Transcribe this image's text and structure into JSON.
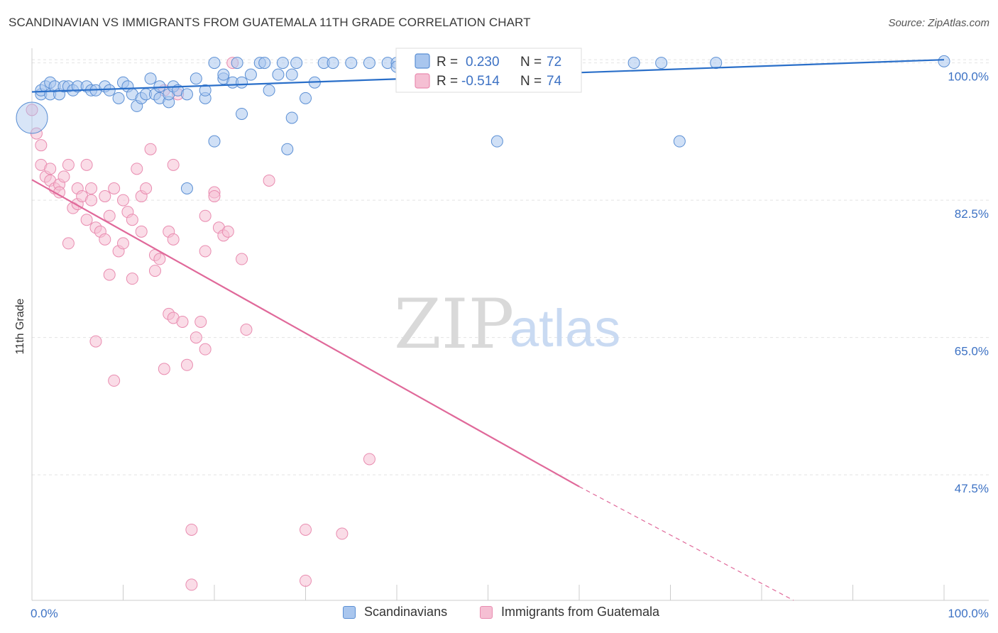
{
  "header": {
    "title": "SCANDINAVIAN VS IMMIGRANTS FROM GUATEMALA 11TH GRADE CORRELATION CHART",
    "source": "Source: ZipAtlas.com"
  },
  "watermark": {
    "zip": "ZIP",
    "atlas": "atlas"
  },
  "colors": {
    "blue": "#5b8fd4",
    "blue_fill": "#a9c6ee",
    "blue_line": "#2a6fc9",
    "pink": "#e98cb0",
    "pink_fill": "#f5bfd3",
    "pink_line": "#e0699a",
    "tick_text": "#3d72c4",
    "grid": "#e3e3e3"
  },
  "legend": {
    "rows": [
      {
        "r_label": "R =",
        "r_value": "0.230",
        "n_label": "N =",
        "n_value": "72"
      },
      {
        "r_label": "R =",
        "r_value": "-0.514",
        "n_label": "N =",
        "n_value": "74"
      }
    ]
  },
  "bottom_legend": [
    "Scandinavians",
    "Immigrants from Guatemala"
  ],
  "chart_data": {
    "type": "scatter",
    "title": "SCANDINAVIAN VS IMMIGRANTS FROM GUATEMALA 11TH GRADE CORRELATION CHART",
    "xlabel": "",
    "ylabel": "11th Grade",
    "xlim": [
      0,
      100
    ],
    "ylim": [
      31.5,
      101.5
    ],
    "x_tick_labels": [
      "0.0%",
      "100.0%"
    ],
    "y_ticks": [
      47.5,
      65.0,
      82.5,
      100.0
    ],
    "y_tick_labels": [
      "47.5%",
      "65.0%",
      "82.5%",
      "100.0%"
    ],
    "grid": true,
    "legend_position": "top-center",
    "series": [
      {
        "name": "Scandinavians",
        "r": 0.23,
        "n": 72,
        "trend": {
          "x": [
            0,
            100
          ],
          "y": [
            96.3,
            100.4
          ]
        },
        "points": [
          [
            0,
            93
          ],
          [
            1,
            96
          ],
          [
            1,
            96.5
          ],
          [
            1.5,
            97
          ],
          [
            2,
            97.5
          ],
          [
            2,
            96
          ],
          [
            2.5,
            97
          ],
          [
            3,
            96
          ],
          [
            3.5,
            97
          ],
          [
            4,
            97
          ],
          [
            4.5,
            96.5
          ],
          [
            5,
            97
          ],
          [
            6,
            97
          ],
          [
            6.5,
            96.5
          ],
          [
            7,
            96.5
          ],
          [
            8,
            97
          ],
          [
            8.5,
            96.5
          ],
          [
            9.5,
            95.5
          ],
          [
            10,
            97.5
          ],
          [
            10.5,
            97
          ],
          [
            11,
            96
          ],
          [
            11.5,
            94.5
          ],
          [
            12,
            95.5
          ],
          [
            12.5,
            96
          ],
          [
            13,
            98
          ],
          [
            13.5,
            96
          ],
          [
            14,
            97
          ],
          [
            14,
            95.5
          ],
          [
            15,
            95
          ],
          [
            15,
            96
          ],
          [
            15.5,
            97
          ],
          [
            16,
            96.5
          ],
          [
            17,
            96
          ],
          [
            17,
            84
          ],
          [
            18,
            98
          ],
          [
            19,
            95.5
          ],
          [
            19,
            96.5
          ],
          [
            20,
            90
          ],
          [
            20,
            100
          ],
          [
            21,
            98
          ],
          [
            21,
            98.5
          ],
          [
            22,
            97.5
          ],
          [
            22.5,
            100
          ],
          [
            23,
            97.5
          ],
          [
            23,
            93.5
          ],
          [
            24,
            98.5
          ],
          [
            25,
            100
          ],
          [
            25.5,
            100
          ],
          [
            26,
            96.5
          ],
          [
            27,
            98.5
          ],
          [
            27.5,
            100
          ],
          [
            28,
            89
          ],
          [
            28.5,
            93
          ],
          [
            28.5,
            98.5
          ],
          [
            29,
            100
          ],
          [
            30,
            95.5
          ],
          [
            31,
            97.5
          ],
          [
            32,
            100
          ],
          [
            33,
            100
          ],
          [
            35,
            100
          ],
          [
            37,
            100
          ],
          [
            39,
            100
          ],
          [
            40,
            100
          ],
          [
            40,
            99.5
          ],
          [
            42,
            100
          ],
          [
            44,
            100
          ],
          [
            51,
            90
          ],
          [
            66,
            100
          ],
          [
            69,
            100
          ],
          [
            71,
            90
          ],
          [
            75,
            100
          ],
          [
            100,
            100.2
          ]
        ]
      },
      {
        "name": "Immigrants from Guatemala",
        "r": -0.514,
        "n": 74,
        "trend": {
          "x": [
            0,
            60
          ],
          "y": [
            85.1,
            46.0
          ]
        },
        "trend_dashed": {
          "x": [
            60,
            83.5
          ],
          "y": [
            46.0,
            31.5
          ]
        },
        "points": [
          [
            0,
            94
          ],
          [
            0.5,
            91
          ],
          [
            1,
            89.5
          ],
          [
            1,
            87
          ],
          [
            1.5,
            85.5
          ],
          [
            2,
            85
          ],
          [
            2,
            86.5
          ],
          [
            2.5,
            84
          ],
          [
            3,
            84.5
          ],
          [
            3,
            83.5
          ],
          [
            3.5,
            85.5
          ],
          [
            4,
            87
          ],
          [
            4,
            77
          ],
          [
            4.5,
            81.5
          ],
          [
            5,
            84
          ],
          [
            5,
            82
          ],
          [
            5.5,
            83
          ],
          [
            6,
            80
          ],
          [
            6,
            87
          ],
          [
            6.5,
            82.5
          ],
          [
            6.5,
            84
          ],
          [
            7,
            79
          ],
          [
            7,
            64.5
          ],
          [
            7.5,
            78.5
          ],
          [
            8,
            83
          ],
          [
            8,
            77.5
          ],
          [
            8.5,
            80.5
          ],
          [
            8.5,
            73
          ],
          [
            9,
            84
          ],
          [
            9,
            59.5
          ],
          [
            9.5,
            76
          ],
          [
            10,
            82.5
          ],
          [
            10.5,
            81
          ],
          [
            10,
            77
          ],
          [
            11,
            80
          ],
          [
            11,
            72.5
          ],
          [
            11.5,
            86.5
          ],
          [
            12,
            78.5
          ],
          [
            12,
            83
          ],
          [
            12.5,
            84
          ],
          [
            13,
            89
          ],
          [
            13.5,
            73.5
          ],
          [
            13.5,
            75.5
          ],
          [
            14,
            75
          ],
          [
            14.5,
            61
          ],
          [
            14.5,
            96.5
          ],
          [
            15,
            78.5
          ],
          [
            15,
            68
          ],
          [
            15.5,
            87
          ],
          [
            15.5,
            67.5
          ],
          [
            15.5,
            77.5
          ],
          [
            16,
            96
          ],
          [
            16.5,
            67
          ],
          [
            17,
            61.5
          ],
          [
            17.5,
            40.5
          ],
          [
            17.5,
            33.5
          ],
          [
            18,
            65
          ],
          [
            18.5,
            67
          ],
          [
            19,
            80.5
          ],
          [
            19,
            76
          ],
          [
            19,
            63.5
          ],
          [
            20,
            83.5
          ],
          [
            20,
            83
          ],
          [
            20.5,
            79
          ],
          [
            21,
            78
          ],
          [
            21.5,
            78.5
          ],
          [
            22,
            100
          ],
          [
            23,
            75
          ],
          [
            23.5,
            66
          ],
          [
            26,
            85
          ],
          [
            30,
            40.5
          ],
          [
            30,
            34
          ],
          [
            34,
            40
          ],
          [
            37,
            49.5
          ]
        ]
      }
    ]
  }
}
